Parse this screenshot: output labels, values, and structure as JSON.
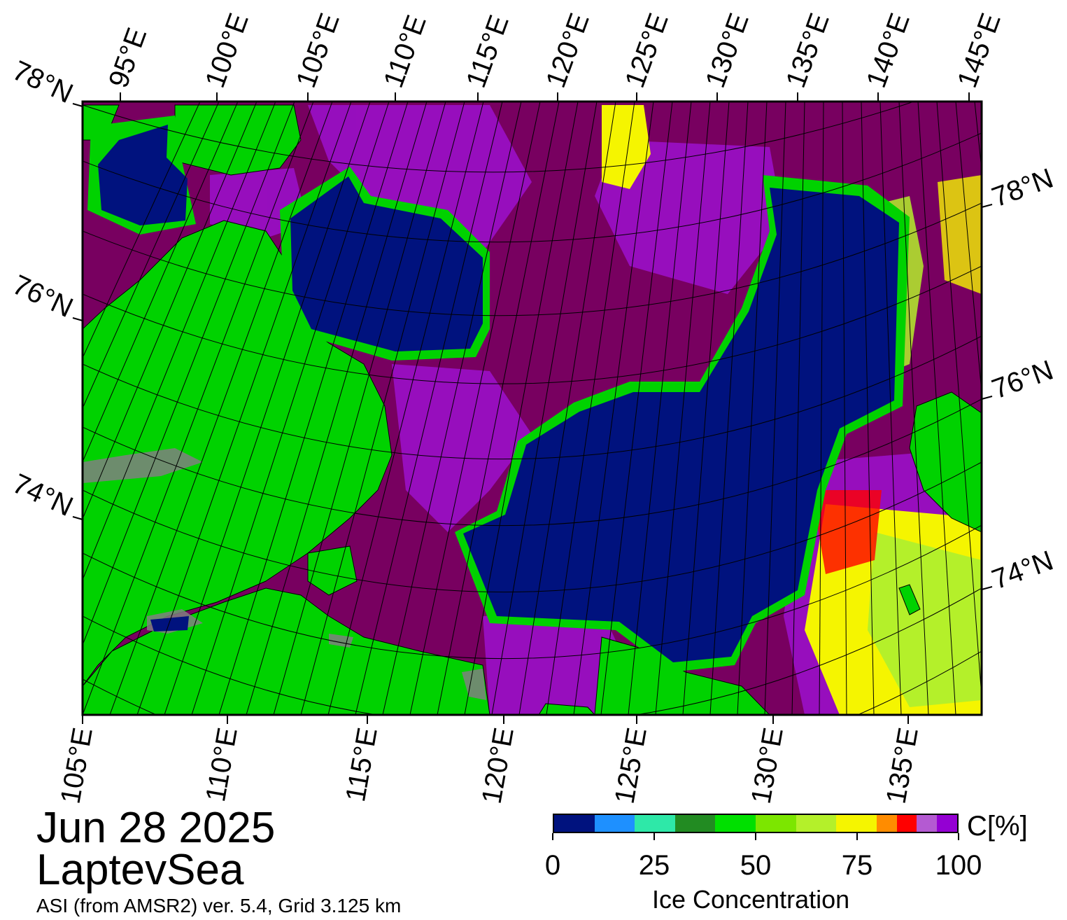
{
  "map": {
    "date": "Jun 28 2025",
    "region": "LaptevSea",
    "source": "ASI (from AMSR2) ver. 5.4,  Grid 3.125 km",
    "top_lon_labels": [
      "95°E",
      "100°E",
      "105°E",
      "110°E",
      "115°E",
      "120°E",
      "125°E",
      "130°E",
      "135°E",
      "140°E",
      "145°E"
    ],
    "bottom_lon_labels": [
      "105°E",
      "110°E",
      "115°E",
      "120°E",
      "125°E",
      "130°E",
      "135°E"
    ],
    "left_lat_labels": [
      "78°N",
      "76°N",
      "74°N"
    ],
    "right_lat_labels": [
      "78°N",
      "76°N",
      "74°N"
    ]
  },
  "colorbar": {
    "title": "Ice Concentration",
    "unit": "C[%]",
    "ticks": [
      "0",
      "25",
      "50",
      "75",
      "100"
    ],
    "bins": [
      {
        "from": 0,
        "to": 10,
        "color": "#00127e"
      },
      {
        "from": 10,
        "to": 20,
        "color": "#1e90ff"
      },
      {
        "from": 20,
        "to": 30,
        "color": "#2ee8a8"
      },
      {
        "from": 30,
        "to": 40,
        "color": "#228b22"
      },
      {
        "from": 40,
        "to": 50,
        "color": "#00e000"
      },
      {
        "from": 50,
        "to": 60,
        "color": "#7ce600"
      },
      {
        "from": 60,
        "to": 70,
        "color": "#b4f02a"
      },
      {
        "from": 70,
        "to": 80,
        "color": "#f5f500"
      },
      {
        "from": 80,
        "to": 85,
        "color": "#ff8c00"
      },
      {
        "from": 85,
        "to": 90,
        "color": "#ff0000"
      },
      {
        "from": 90,
        "to": 95,
        "color": "#b45ad2"
      },
      {
        "from": 95,
        "to": 100,
        "color": "#9400d3"
      }
    ]
  },
  "colors": {
    "land": "#00d200",
    "open_water": "#00127e",
    "dense_ice": "#780060",
    "mid_ice": "#9a10c8",
    "edge_ice": "#f5f500",
    "coast_gray": "#808080"
  }
}
